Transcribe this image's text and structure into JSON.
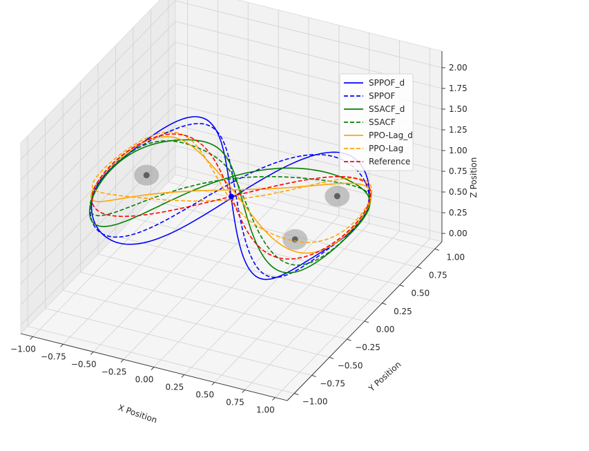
{
  "chart_data": {
    "type": "line",
    "projection": "3d",
    "xlabel": "X Position",
    "ylabel": "Y Position",
    "zlabel": "Z Position",
    "xlim": [
      -1.1,
      1.1
    ],
    "ylim": [
      -1.1,
      1.1
    ],
    "zlim": [
      -0.1,
      2.2
    ],
    "xticks": [
      "−1.00",
      "−0.75",
      "−0.50",
      "−0.25",
      "0.00",
      "0.25",
      "0.50",
      "0.75",
      "1.00"
    ],
    "yticks": [
      "−1.00",
      "−0.75",
      "−0.50",
      "−0.25",
      "0.00",
      "0.25",
      "0.50",
      "0.75",
      "1.00"
    ],
    "zticks": [
      "0.00",
      "0.25",
      "0.50",
      "0.75",
      "1.00",
      "1.25",
      "1.50",
      "1.75",
      "2.00"
    ],
    "xtick_values": [
      -1.0,
      -0.75,
      -0.5,
      -0.25,
      0.0,
      0.25,
      0.5,
      0.75,
      1.0
    ],
    "ytick_values": [
      -1.0,
      -0.75,
      -0.5,
      -0.25,
      0.0,
      0.25,
      0.5,
      0.75,
      1.0
    ],
    "ztick_values": [
      0.0,
      0.25,
      0.5,
      0.75,
      1.0,
      1.25,
      1.5,
      1.75,
      2.0
    ],
    "grid": true,
    "legend_position": "upper-right",
    "series": [
      {
        "name": "SPPOF_d",
        "color": "#0000ff",
        "dash": "solid",
        "amp": 0.32,
        "phase": 0.0,
        "zoff": -0.02
      },
      {
        "name": "SPPOF",
        "color": "#0000ff",
        "dash": "dashed",
        "amp": 0.28,
        "phase": 0.5,
        "zoff": 0.01
      },
      {
        "name": "SSACF_d",
        "color": "#008000",
        "dash": "solid",
        "amp": 0.22,
        "phase": 1.3,
        "zoff": 0.0
      },
      {
        "name": "SSACF",
        "color": "#008000",
        "dash": "dashed",
        "amp": 0.2,
        "phase": 1.9,
        "zoff": 0.02
      },
      {
        "name": "PPO-Lag_d",
        "color": "#ffa500",
        "dash": "solid",
        "amp": 0.18,
        "phase": 2.7,
        "zoff": 0.04
      },
      {
        "name": "PPO-Lag",
        "color": "#ffa500",
        "dash": "dashed",
        "amp": 0.18,
        "phase": 3.4,
        "zoff": 0.06
      },
      {
        "name": "Reference",
        "color": "#ff0000",
        "dash": "dashed",
        "amp": 0.0,
        "phase": 0.0,
        "zoff": 0.0
      }
    ],
    "reference_curve": "figure-eight: x = sin(t), y = sin(t)cos(t), z = 1.0",
    "obstacles": [
      {
        "x": -0.7,
        "y": 0.0,
        "z": 1.0
      },
      {
        "x": 0.7,
        "y": 0.3,
        "z": 1.0
      },
      {
        "x": 0.7,
        "y": -0.3,
        "z": 1.0
      }
    ],
    "marker_point": {
      "x": 0.0,
      "y": 0.0,
      "z": 1.0
    }
  }
}
